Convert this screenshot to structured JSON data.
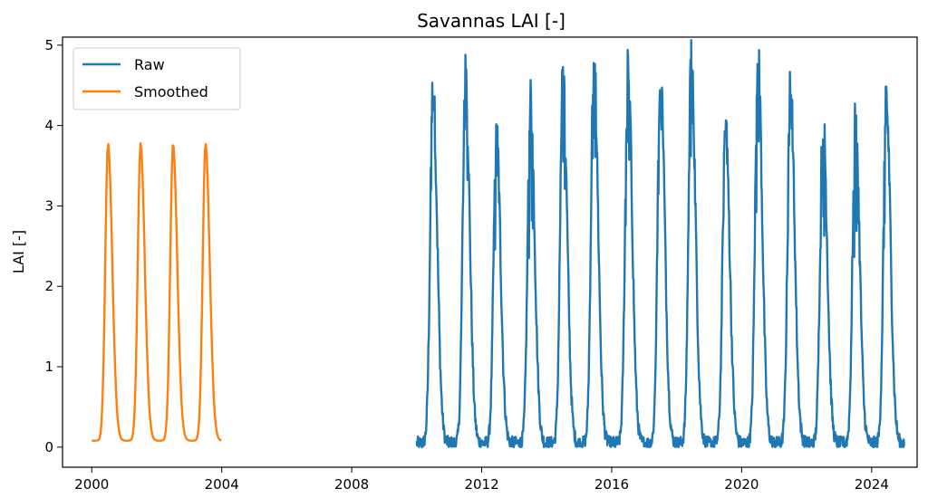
{
  "chart_data": {
    "type": "line",
    "title": "Savannas LAI [-]",
    "xlabel": "",
    "ylabel": "LAI [-]",
    "xlim": [
      1999.1,
      2025.4
    ],
    "ylim": [
      -0.25,
      5.1
    ],
    "x_ticks": [
      2000,
      2004,
      2008,
      2012,
      2016,
      2020,
      2024
    ],
    "y_ticks": [
      0,
      1,
      2,
      3,
      4,
      5
    ],
    "grid": false,
    "legend_position": "top-left",
    "series": [
      {
        "name": "Raw",
        "color": "#1f77b4",
        "x_range": [
          2010.0,
          2025.0
        ],
        "base": 0.05,
        "seasonal_peaks": [
          {
            "x": 2010.5,
            "y": 4.45
          },
          {
            "x": 2011.5,
            "y": 4.6
          },
          {
            "x": 2012.45,
            "y": 3.88
          },
          {
            "x": 2013.5,
            "y": 4.28
          },
          {
            "x": 2014.5,
            "y": 4.6
          },
          {
            "x": 2015.45,
            "y": 4.83
          },
          {
            "x": 2016.5,
            "y": 4.7
          },
          {
            "x": 2017.5,
            "y": 4.78
          },
          {
            "x": 2018.45,
            "y": 4.79
          },
          {
            "x": 2019.5,
            "y": 4.08
          },
          {
            "x": 2020.5,
            "y": 4.85
          },
          {
            "x": 2021.5,
            "y": 4.48
          },
          {
            "x": 2022.5,
            "y": 4.12
          },
          {
            "x": 2023.5,
            "y": 4.08
          },
          {
            "x": 2024.45,
            "y": 4.3
          }
        ]
      },
      {
        "name": "Smoothed",
        "color": "#ff7f0e",
        "x_range": [
          2000.0,
          2004.0
        ],
        "base": 0.08,
        "seasonal_peaks": [
          {
            "x": 2000.5,
            "y": 3.78
          },
          {
            "x": 2001.5,
            "y": 3.78
          },
          {
            "x": 2002.5,
            "y": 3.78
          },
          {
            "x": 2003.5,
            "y": 3.78
          }
        ]
      }
    ]
  }
}
